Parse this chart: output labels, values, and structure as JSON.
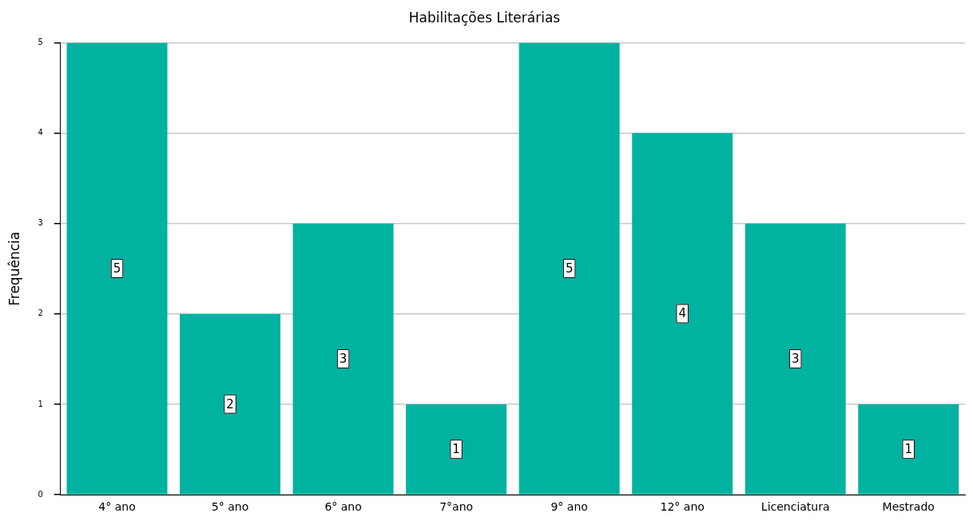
{
  "chart_data": {
    "type": "bar",
    "title": "Habilitações Literárias",
    "ylabel": "Frequência",
    "categories": [
      "4° ano",
      "5° ano",
      "6° ano",
      "7°ano",
      "9° ano",
      "12° ano",
      "Licenciatura",
      "Mestrado"
    ],
    "values": [
      5,
      2,
      3,
      1,
      5,
      4,
      3,
      1
    ],
    "color": "#00b2a0",
    "ylim": [
      0,
      5
    ],
    "yticks": [
      0,
      1,
      2,
      3,
      4,
      5
    ],
    "grid": "y",
    "data_labels": true,
    "legend": false
  }
}
